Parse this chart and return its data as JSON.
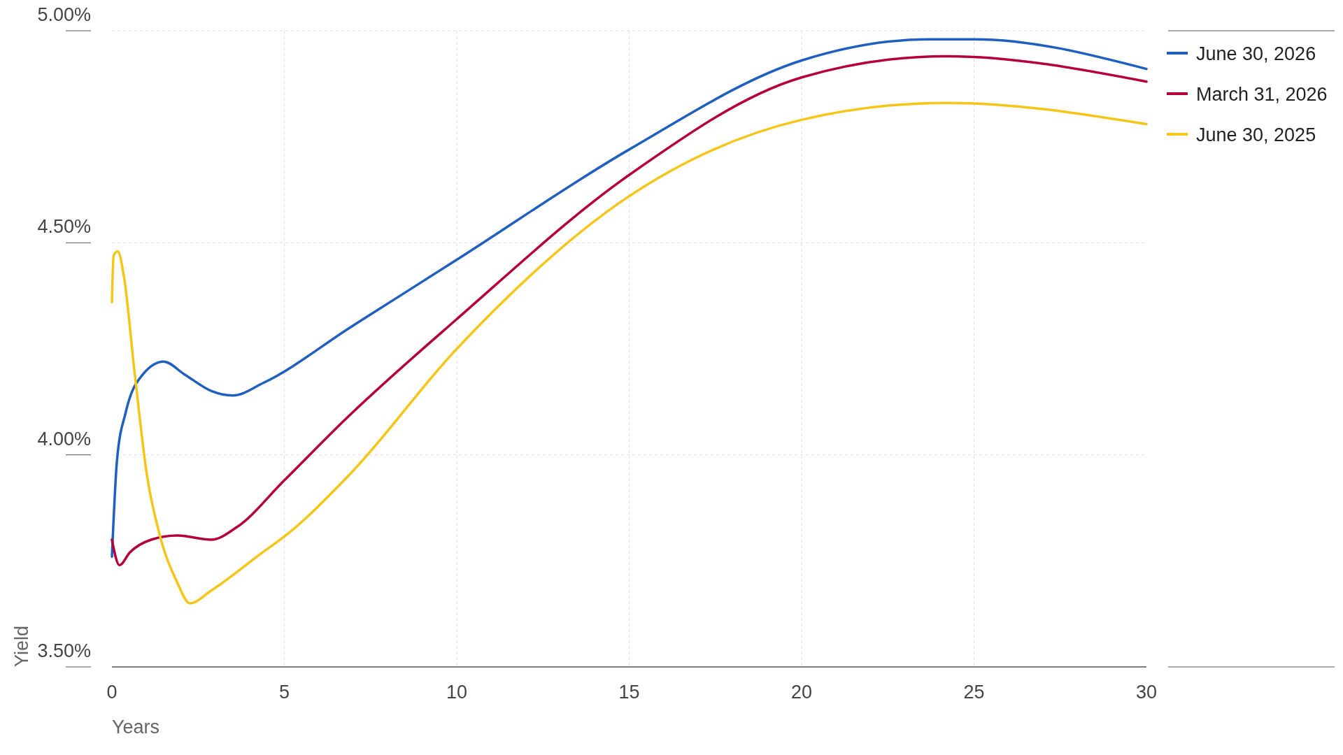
{
  "chart_data": {
    "type": "line",
    "xlabel": "Years",
    "ylabel": "Yield",
    "xlim": [
      0,
      30
    ],
    "xticks": [
      0,
      5,
      10,
      15,
      20,
      25,
      30
    ],
    "ylim": [
      3.5,
      5.0
    ],
    "yticks": [
      {
        "value": 3.5,
        "label": "3.50%"
      },
      {
        "value": 4.0,
        "label": "4.00%"
      },
      {
        "value": 4.5,
        "label": "4.50%"
      },
      {
        "value": 5.0,
        "label": "5.00%"
      }
    ],
    "grid": true,
    "legend": "top right",
    "line_style": "solid",
    "series": [
      {
        "name": "June 30, 2026",
        "color": "#1f5fbf",
        "x": [
          0,
          0.15,
          0.4,
          0.9,
          1.5,
          2.1,
          2.9,
          3.5,
          4.4,
          6.9,
          10,
          15,
          20,
          23.7,
          25,
          30
        ],
        "values": [
          3.76,
          3.99,
          4.1,
          4.19,
          4.22,
          4.19,
          4.15,
          4.14,
          4.17,
          4.3,
          4.46,
          4.72,
          4.93,
          4.98,
          4.98,
          4.91
        ]
      },
      {
        "name": "March 31, 2026",
        "color": "#b5003b",
        "x": [
          0,
          0.22,
          0.52,
          1.14,
          1.89,
          2.88,
          3.63,
          5,
          6.85,
          10,
          15,
          20,
          24.2,
          30
        ],
        "values": [
          3.8,
          3.74,
          3.77,
          3.8,
          3.81,
          3.8,
          3.83,
          3.94,
          4.09,
          4.32,
          4.66,
          4.89,
          4.94,
          4.88
        ]
      },
      {
        "name": "June 30, 2025",
        "color": "#f5c518",
        "x": [
          0,
          0.05,
          0.17,
          0.35,
          0.65,
          1.02,
          1.39,
          1.89,
          2.26,
          2.88,
          4.37,
          5.04,
          6.85,
          10,
          15,
          20,
          24.2,
          30
        ],
        "values": [
          4.36,
          4.47,
          4.48,
          4.42,
          4.2,
          3.95,
          3.81,
          3.7,
          3.65,
          3.68,
          3.77,
          3.81,
          3.95,
          4.25,
          4.61,
          4.79,
          4.83,
          4.78
        ]
      }
    ]
  }
}
